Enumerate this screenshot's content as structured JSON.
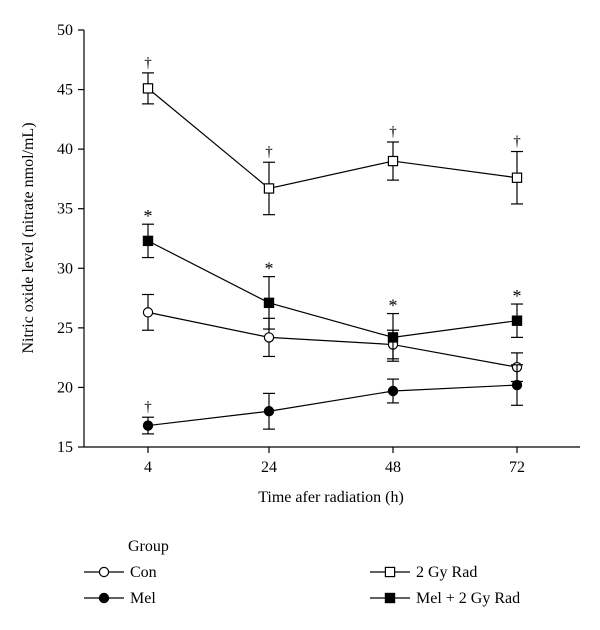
{
  "chart_data": {
    "type": "line",
    "title": "",
    "xlabel": "Time afer radiation (h)",
    "ylabel": "Nitric oxide level (nitrate nmol/mL)",
    "x": [
      4,
      24,
      48,
      72
    ],
    "x_tick_labels": [
      "4",
      "24",
      "48",
      "72"
    ],
    "ylim": [
      15,
      50
    ],
    "y_ticks": [
      15,
      20,
      25,
      30,
      35,
      40,
      45,
      50
    ],
    "y_tick_labels": [
      "15",
      "20",
      "25",
      "30",
      "35",
      "40",
      "45",
      "50"
    ],
    "legend_title": "Group",
    "legend_position": "bottom",
    "series": [
      {
        "name": "Con",
        "marker": "open-circle",
        "values": [
          26.3,
          24.2,
          23.6,
          21.7
        ],
        "errors": [
          1.5,
          1.6,
          1.2,
          1.2
        ],
        "annotations": [
          "",
          "",
          "",
          ""
        ]
      },
      {
        "name": "Mel",
        "marker": "filled-circle",
        "values": [
          16.8,
          18.0,
          19.7,
          20.2
        ],
        "errors": [
          0.7,
          1.5,
          1.0,
          1.7
        ],
        "annotations": [
          "†",
          "",
          "",
          ""
        ]
      },
      {
        "name": "2 Gy Rad",
        "marker": "open-square",
        "values": [
          45.1,
          36.7,
          39.0,
          37.6
        ],
        "errors": [
          1.3,
          2.2,
          1.6,
          2.2
        ],
        "annotations": [
          "†",
          "†",
          "†",
          "†"
        ]
      },
      {
        "name": "Mel + 2 Gy Rad",
        "marker": "filled-square",
        "values": [
          32.3,
          27.1,
          24.2,
          25.6
        ],
        "errors": [
          1.4,
          2.2,
          2.0,
          1.4
        ],
        "annotations": [
          "*",
          "*",
          "*",
          "*"
        ]
      }
    ]
  }
}
